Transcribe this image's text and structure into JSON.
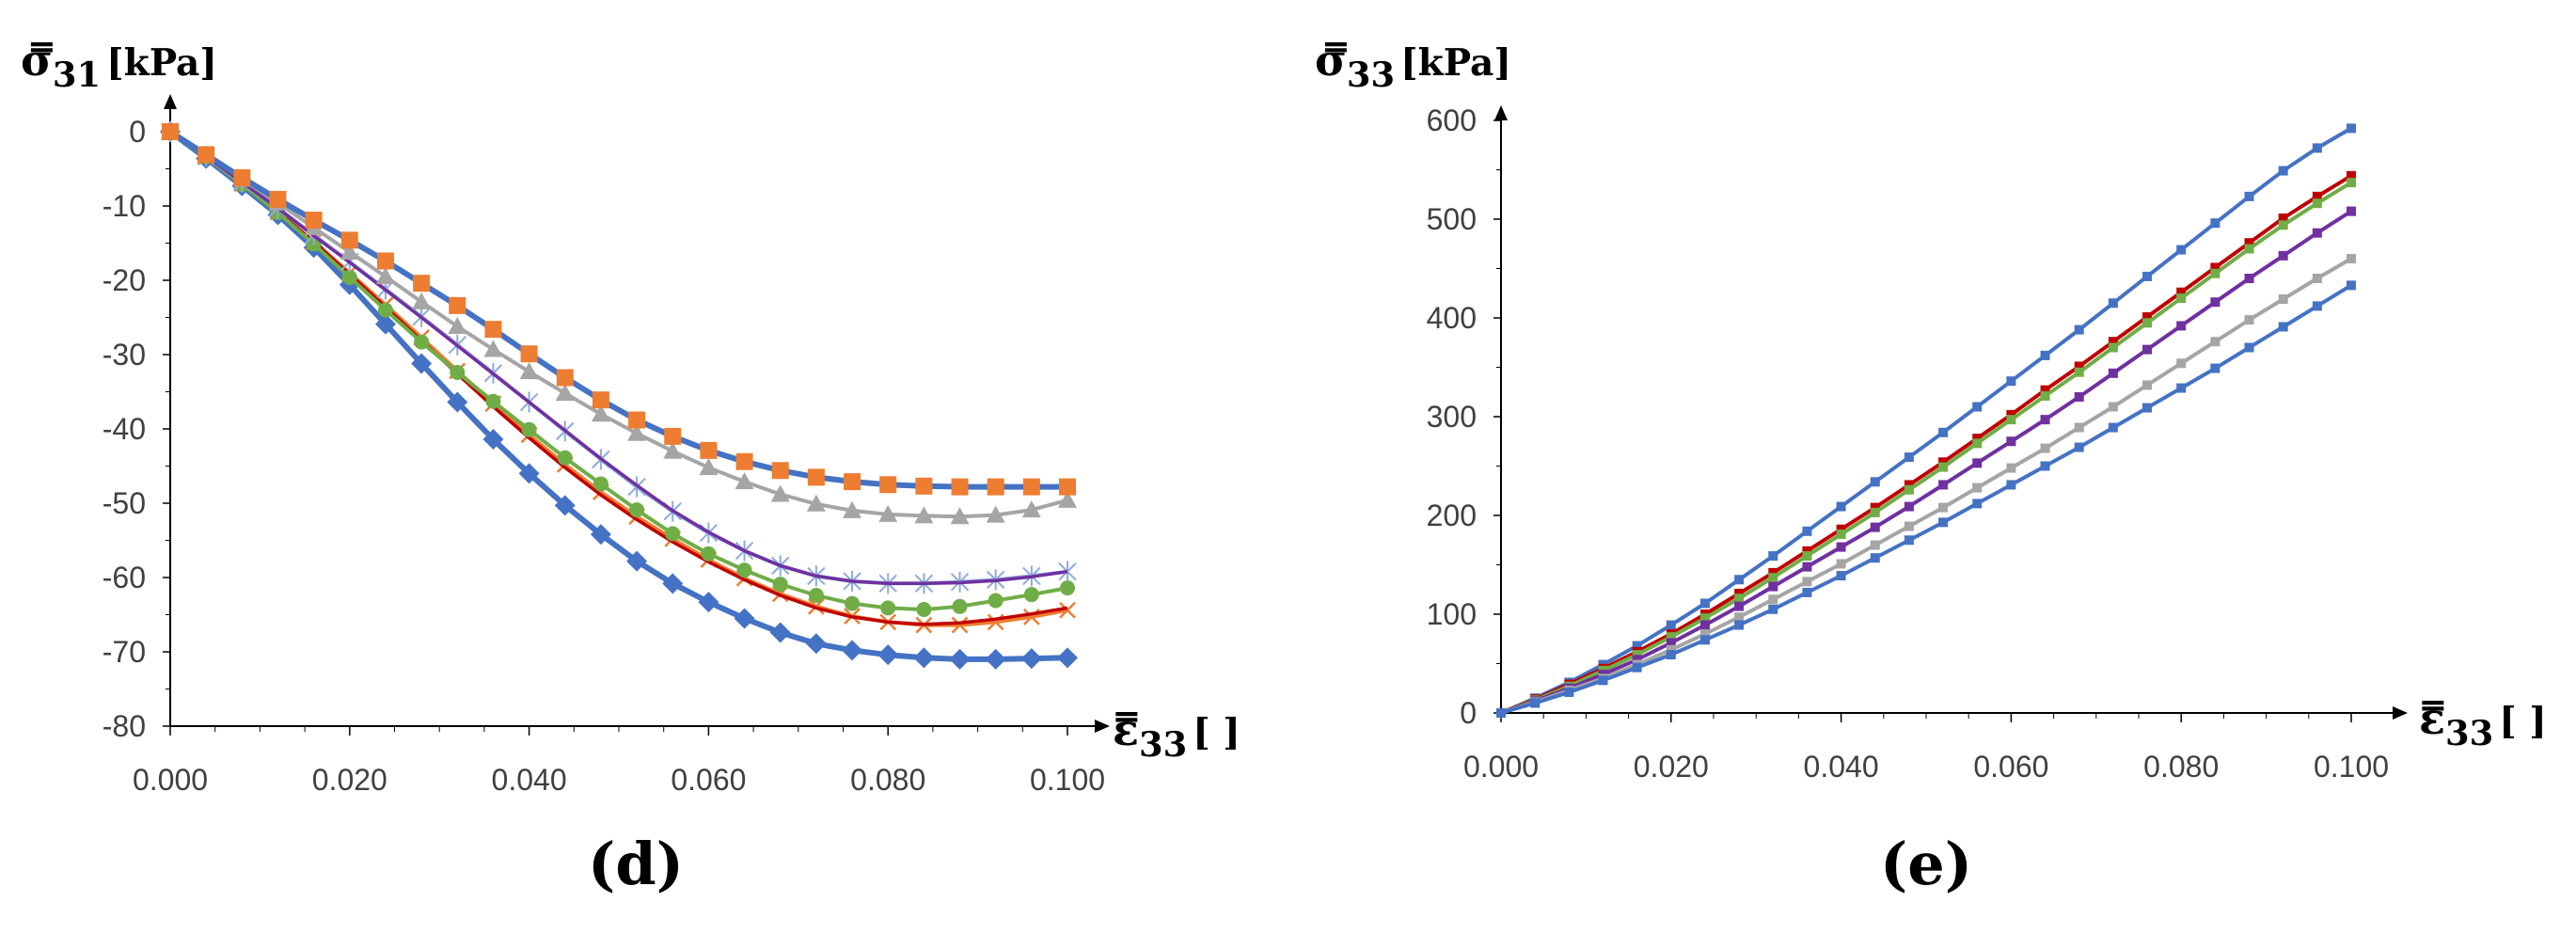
{
  "chart_data": [
    {
      "type": "line",
      "panel_label": "(d)",
      "ylabel": {
        "sym": "σ̿",
        "sub": "31",
        "unit": "[kPa]"
      },
      "xlabel": {
        "sym": "ε̿",
        "sub": "33",
        "unit": "[ ]"
      },
      "xlim": [
        0,
        0.1
      ],
      "ylim": [
        -80,
        0
      ],
      "x_ticks": [
        "0.000",
        "0.020",
        "0.040",
        "0.060",
        "0.080",
        "0.100"
      ],
      "y_ticks": [
        "0",
        "-10",
        "-20",
        "-30",
        "-40",
        "-50",
        "-60",
        "-70",
        "-80"
      ],
      "x": [
        0,
        0.004,
        0.008,
        0.012,
        0.016,
        0.02,
        0.024,
        0.028,
        0.032,
        0.036,
        0.04,
        0.044,
        0.048,
        0.052,
        0.056,
        0.06,
        0.064,
        0.068,
        0.072,
        0.076,
        0.08,
        0.084,
        0.088,
        0.092,
        0.096,
        0.1
      ],
      "series": [
        {
          "name": "series-diamond",
          "color": "#4472c4",
          "marker": "diamond",
          "values": [
            0,
            -3.6,
            -7.3,
            -11.2,
            -15.6,
            -20.6,
            -25.9,
            -31.2,
            -36.4,
            -41.4,
            -46,
            -50.3,
            -54.2,
            -57.8,
            -60.8,
            -63.3,
            -65.5,
            -67.4,
            -68.9,
            -69.8,
            -70.4,
            -70.8,
            -71,
            -71,
            -70.9,
            -70.8
          ]
        },
        {
          "name": "series-x",
          "color": "#ed7d31",
          "marker": "x",
          "values": [
            0,
            -3.4,
            -7,
            -10.8,
            -14.8,
            -19,
            -23.3,
            -27.7,
            -32.2,
            -36.6,
            -40.8,
            -44.8,
            -48.5,
            -51.8,
            -54.8,
            -57.6,
            -60.1,
            -62.2,
            -63.9,
            -65.2,
            -66,
            -66.4,
            -66.4,
            -66,
            -65.3,
            -64.4
          ]
        },
        {
          "name": "series-red-line",
          "color": "#c00000",
          "marker": "none",
          "values": [
            0,
            -3.4,
            -7,
            -10.8,
            -14.8,
            -19.2,
            -23.6,
            -28.1,
            -32.6,
            -37,
            -41.2,
            -45.2,
            -48.9,
            -52.2,
            -55.2,
            -57.9,
            -60.3,
            -62.4,
            -64.1,
            -65.3,
            -66,
            -66.3,
            -66.1,
            -65.6,
            -64.9,
            -64.1
          ]
        },
        {
          "name": "series-circle",
          "color": "#70ad47",
          "marker": "circle",
          "values": [
            0,
            -3.4,
            -7.1,
            -10.9,
            -15.1,
            -19.6,
            -24,
            -28.3,
            -32.4,
            -36.3,
            -40.1,
            -43.9,
            -47.4,
            -50.9,
            -54.1,
            -56.8,
            -59,
            -60.9,
            -62.4,
            -63.5,
            -64.1,
            -64.3,
            -63.9,
            -63.1,
            -62.3,
            -61.4
          ]
        },
        {
          "name": "series-star",
          "color": "#8faadc",
          "marker": "star",
          "values": [
            0,
            -3.3,
            -6.8,
            -10.3,
            -13.9,
            -17.5,
            -21.2,
            -24.9,
            -28.7,
            -32.5,
            -36.4,
            -40.3,
            -44.1,
            -47.8,
            -51.1,
            -54,
            -56.4,
            -58.4,
            -59.8,
            -60.5,
            -60.8,
            -60.8,
            -60.6,
            -60.3,
            -59.8,
            -59.2
          ]
        },
        {
          "name": "series-purple-line",
          "color": "#7030a0",
          "marker": "none",
          "values": [
            0,
            -3.3,
            -6.8,
            -10.3,
            -14,
            -17.6,
            -21.3,
            -25,
            -28.8,
            -32.6,
            -36.4,
            -40.2,
            -44,
            -47.6,
            -51,
            -53.9,
            -56.4,
            -58.4,
            -59.8,
            -60.5,
            -60.8,
            -60.8,
            -60.7,
            -60.4,
            -59.9,
            -59.2
          ]
        },
        {
          "name": "series-triangle",
          "color": "#a5a5a5",
          "marker": "triangle",
          "values": [
            0,
            -3.1,
            -6.4,
            -9.6,
            -12.9,
            -16.2,
            -19.5,
            -22.9,
            -26.2,
            -29.3,
            -32.3,
            -35.2,
            -38,
            -40.6,
            -43,
            -45.2,
            -47.1,
            -48.8,
            -50.1,
            -51,
            -51.5,
            -51.7,
            -51.8,
            -51.6,
            -50.9,
            -49.6
          ]
        },
        {
          "name": "series-square-orange",
          "color": "#ed7d31",
          "line_color": "#4472c4",
          "marker": "square",
          "values": [
            0,
            -3.1,
            -6.2,
            -9.1,
            -11.9,
            -14.6,
            -17.4,
            -20.4,
            -23.4,
            -26.6,
            -29.9,
            -33.1,
            -36.1,
            -38.8,
            -41,
            -42.9,
            -44.4,
            -45.6,
            -46.5,
            -47.1,
            -47.5,
            -47.7,
            -47.8,
            -47.8,
            -47.8,
            -47.8
          ]
        }
      ]
    },
    {
      "type": "line",
      "panel_label": "(e)",
      "ylabel": {
        "sym": "σ̿",
        "sub": "33",
        "unit": "[kPa]"
      },
      "xlabel": {
        "sym": "ε̿",
        "sub": "33",
        "unit": "[ ]"
      },
      "xlim": [
        0,
        0.1
      ],
      "ylim": [
        0,
        600
      ],
      "x_ticks": [
        "0.000",
        "0.020",
        "0.040",
        "0.060",
        "0.080",
        "0.100"
      ],
      "y_ticks": [
        "0",
        "100",
        "200",
        "300",
        "400",
        "500",
        "600"
      ],
      "x": [
        0,
        0.004,
        0.008,
        0.012,
        0.016,
        0.02,
        0.024,
        0.028,
        0.032,
        0.036,
        0.04,
        0.044,
        0.048,
        0.052,
        0.056,
        0.06,
        0.064,
        0.068,
        0.072,
        0.076,
        0.08,
        0.084,
        0.088,
        0.092,
        0.096,
        0.1
      ],
      "series": [
        {
          "name": "series-top-blue",
          "color": "#4472c4",
          "marker": "square",
          "values": [
            0,
            15,
            31,
            49,
            68,
            89,
            111,
            135,
            159,
            184,
            209,
            234,
            259,
            284,
            310,
            336,
            362,
            388,
            415,
            442,
            469,
            496,
            523,
            549,
            572,
            592
          ]
        },
        {
          "name": "series-red",
          "color": "#c00000",
          "marker": "square",
          "values": [
            0,
            14,
            29,
            45,
            62,
            80,
            100,
            121,
            142,
            164,
            186,
            208,
            231,
            254,
            278,
            302,
            327,
            351,
            376,
            401,
            426,
            451,
            476,
            501,
            523,
            544
          ]
        },
        {
          "name": "series-green",
          "color": "#70ad47",
          "marker": "square",
          "values": [
            0,
            13,
            27,
            43,
            59,
            77,
            96,
            116,
            137,
            159,
            181,
            203,
            226,
            249,
            273,
            297,
            321,
            345,
            370,
            395,
            420,
            445,
            470,
            494,
            516,
            537
          ]
        },
        {
          "name": "series-purple",
          "color": "#7030a0",
          "marker": "square",
          "values": [
            0,
            12,
            25,
            39,
            54,
            71,
            89,
            108,
            128,
            148,
            168,
            188,
            209,
            231,
            253,
            275,
            297,
            320,
            344,
            368,
            392,
            416,
            440,
            463,
            486,
            508
          ]
        },
        {
          "name": "series-gray",
          "color": "#a5a5a5",
          "marker": "square",
          "values": [
            0,
            11,
            23,
            35,
            49,
            64,
            80,
            97,
            115,
            133,
            151,
            170,
            189,
            208,
            228,
            248,
            268,
            289,
            310,
            332,
            354,
            376,
            398,
            419,
            440,
            460
          ]
        },
        {
          "name": "series-bottom-blue",
          "color": "#4472c4",
          "marker": "square",
          "values": [
            0,
            10,
            21,
            33,
            46,
            59,
            74,
            89,
            105,
            122,
            139,
            157,
            175,
            193,
            212,
            231,
            250,
            269,
            289,
            309,
            329,
            349,
            370,
            391,
            412,
            433
          ]
        }
      ]
    }
  ]
}
